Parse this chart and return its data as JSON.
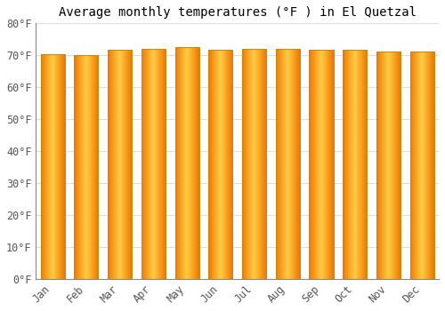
{
  "title": "Average monthly temperatures (°F ) in El Quetzal",
  "months": [
    "Jan",
    "Feb",
    "Mar",
    "Apr",
    "May",
    "Jun",
    "Jul",
    "Aug",
    "Sep",
    "Oct",
    "Nov",
    "Dec"
  ],
  "values": [
    70.3,
    70.2,
    71.6,
    72.0,
    72.5,
    71.8,
    72.1,
    72.0,
    71.8,
    71.6,
    71.2,
    71.1
  ],
  "ylim": [
    0,
    80
  ],
  "yticks": [
    0,
    10,
    20,
    30,
    40,
    50,
    60,
    70,
    80
  ],
  "ytick_labels": [
    "0°F",
    "10°F",
    "20°F",
    "30°F",
    "40°F",
    "50°F",
    "60°F",
    "70°F",
    "80°F"
  ],
  "bar_color_center": "#FFB833",
  "bar_color_edge": "#F07800",
  "bar_color_bright": "#FFCC44",
  "bar_outline_color": "#CC8800",
  "background_color": "#FFFFFF",
  "grid_color": "#DDDDDD",
  "title_fontsize": 10,
  "tick_fontsize": 8.5,
  "font_family": "monospace",
  "bar_width": 0.72,
  "figsize": [
    5.0,
    3.5
  ],
  "dpi": 100
}
